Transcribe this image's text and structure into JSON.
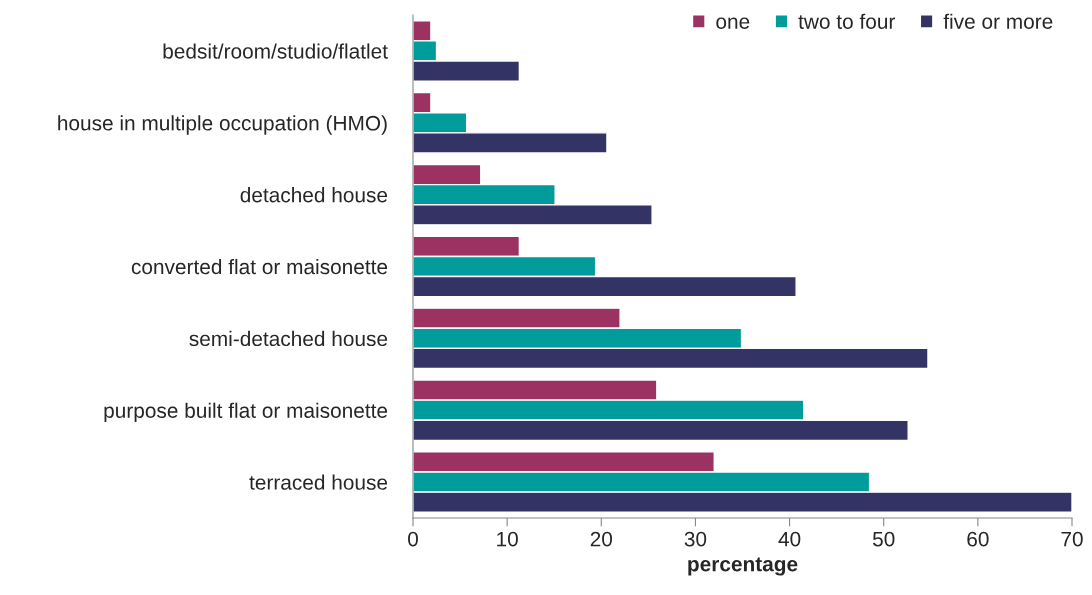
{
  "chart_data": {
    "type": "bar",
    "orientation": "horizontal",
    "xlabel": "percentage",
    "categories": [
      "bedsit/room/studio/flatlet",
      "house in multiple occupation (HMO)",
      "detached house",
      "converted flat or maisonette",
      "semi-detached house",
      "purpose built flat or maisonette",
      "terraced house"
    ],
    "series": [
      {
        "name": "one",
        "color": "#9b3262",
        "values": [
          1.9,
          1.9,
          7.2,
          11.3,
          22.0,
          25.9,
          32.0
        ]
      },
      {
        "name": "two to four",
        "color": "#009b9b",
        "values": [
          2.5,
          5.7,
          15.1,
          19.4,
          34.9,
          41.5,
          48.5
        ]
      },
      {
        "name": "five or more",
        "color": "#333366",
        "values": [
          11.3,
          20.6,
          25.4,
          40.7,
          54.7,
          52.6,
          70.0
        ]
      }
    ],
    "xlim": [
      0,
      70
    ],
    "xticks": [
      0,
      10,
      20,
      30,
      40,
      50,
      60,
      70
    ],
    "grid": false,
    "legend": "top right"
  }
}
